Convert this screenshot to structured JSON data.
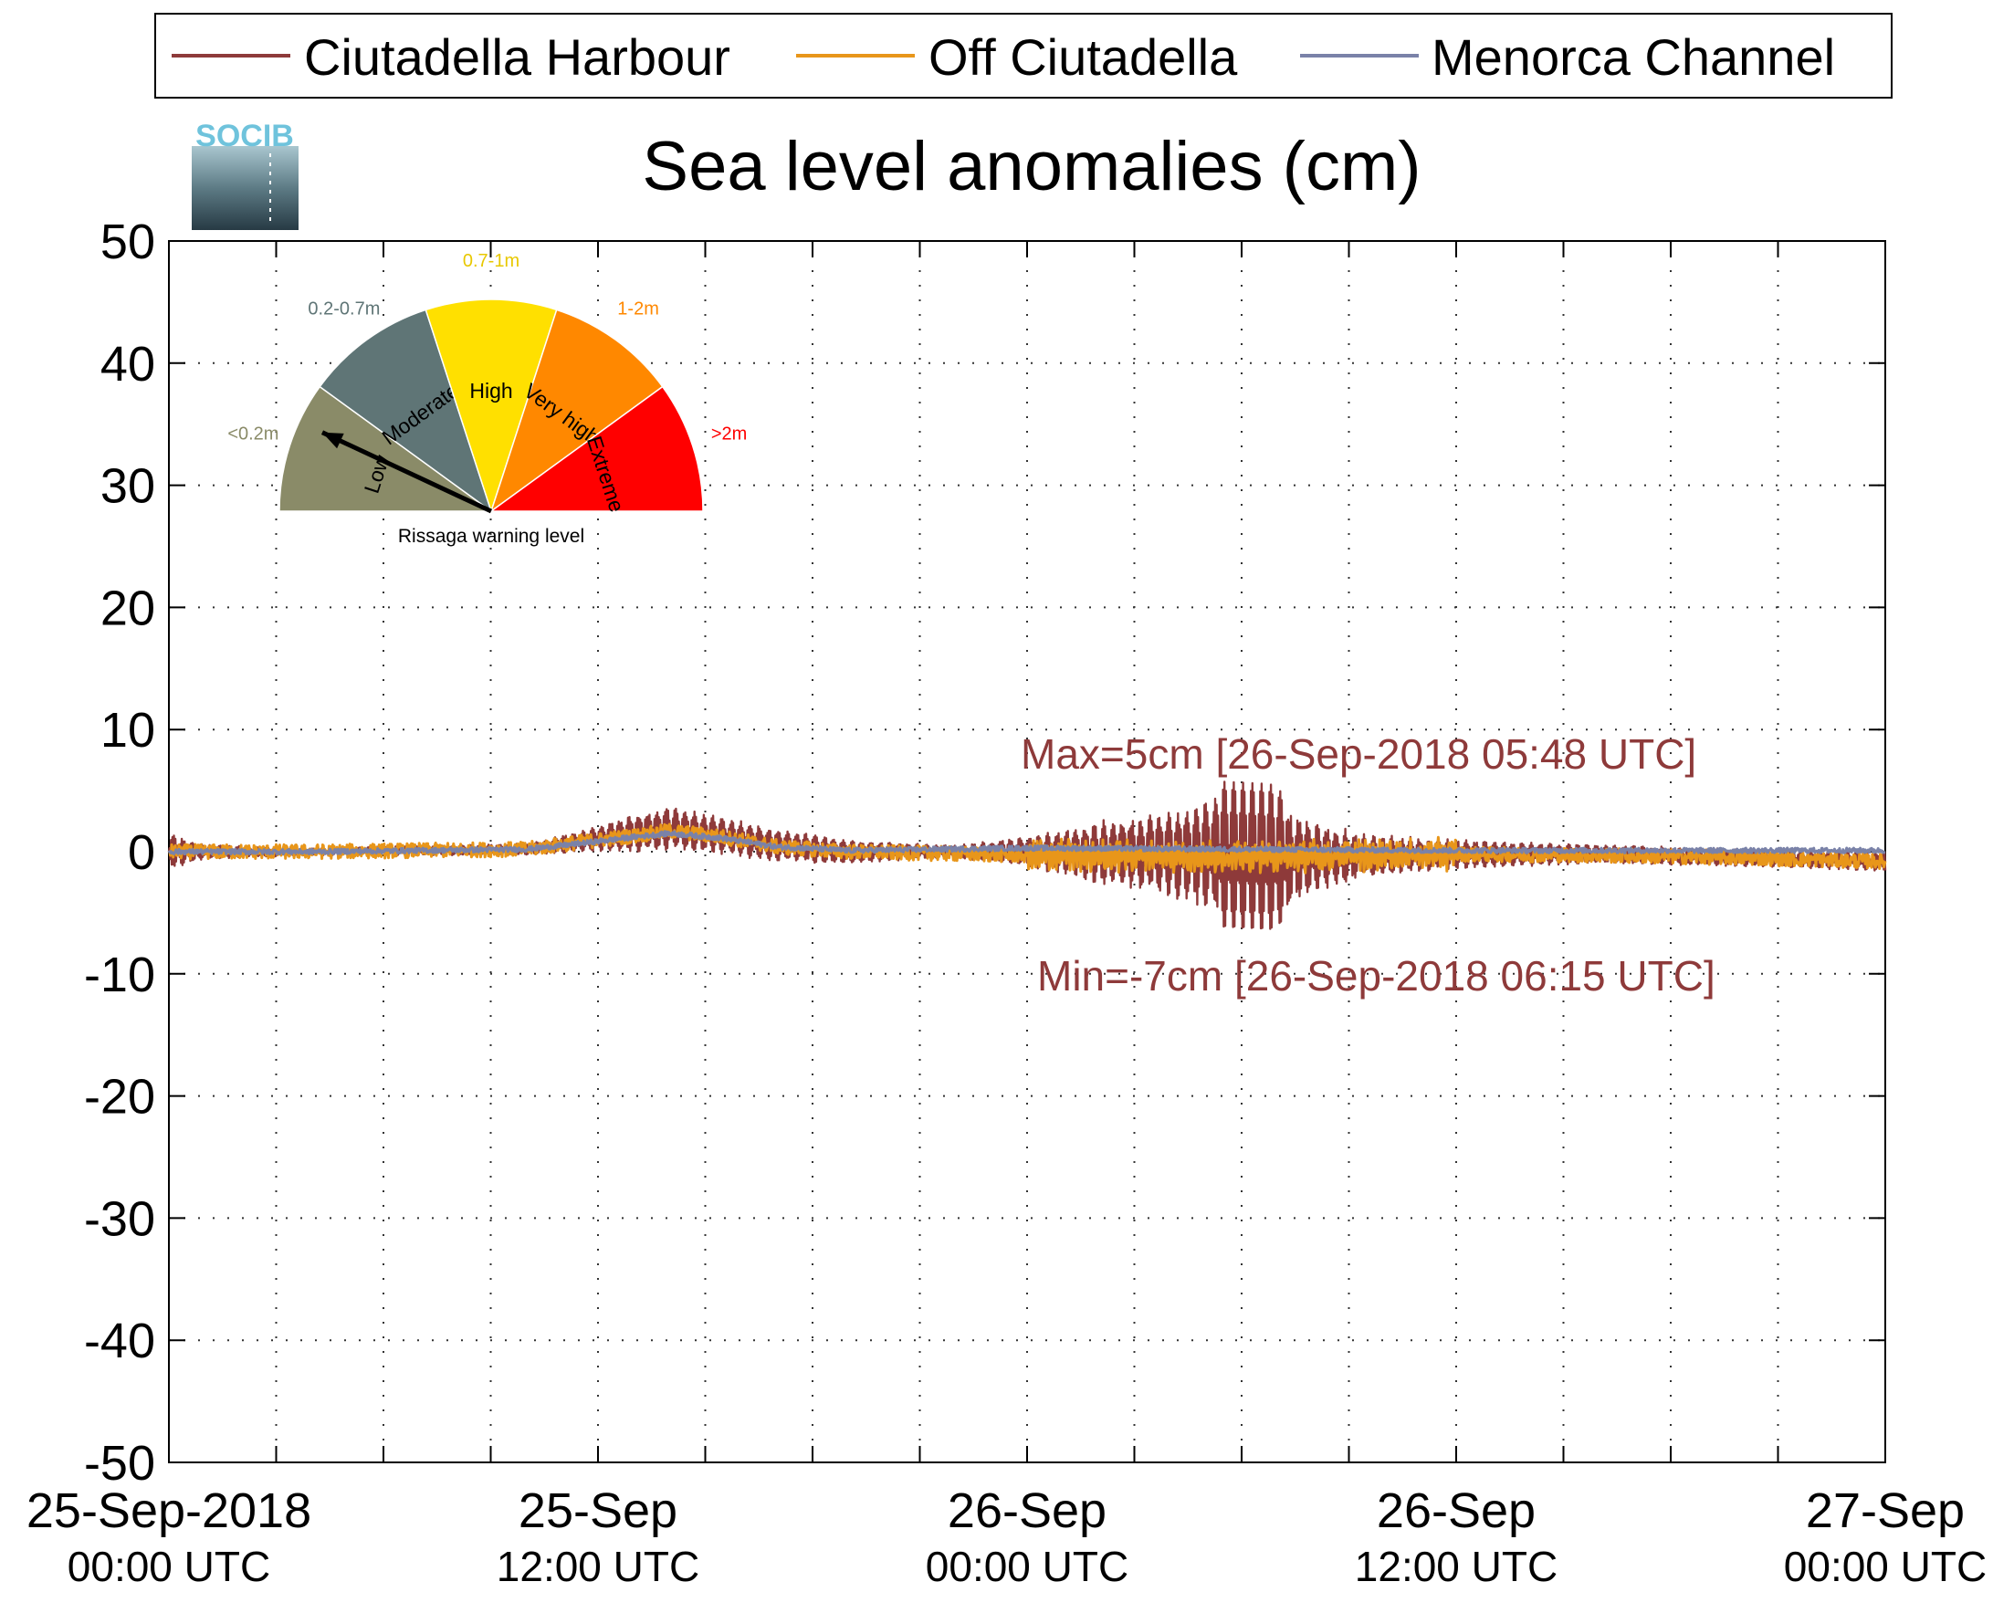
{
  "chart_data": {
    "type": "line",
    "title": "Sea level anomalies (cm)",
    "ylim": [
      -50,
      50
    ],
    "yticks": [
      50,
      40,
      30,
      20,
      10,
      0,
      -10,
      -20,
      -30,
      -40,
      -50
    ],
    "xlim_hours": [
      0,
      48
    ],
    "xticks": [
      {
        "hours": 0,
        "line1": "25-Sep-2018",
        "line2": "00:00 UTC"
      },
      {
        "hours": 12,
        "line1": "25-Sep",
        "line2": "12:00 UTC"
      },
      {
        "hours": 24,
        "line1": "26-Sep",
        "line2": "00:00 UTC"
      },
      {
        "hours": 36,
        "line1": "26-Sep",
        "line2": "12:00 UTC"
      },
      {
        "hours": 48,
        "line1": "27-Sep",
        "line2": "00:00 UTC"
      }
    ],
    "grid": true,
    "legend_position": "top",
    "series": [
      {
        "name": "Ciutadella Harbour",
        "color": "#8e3a3a",
        "envelope": [
          [
            0,
            1.5
          ],
          [
            1,
            0.6
          ],
          [
            4,
            0.3
          ],
          [
            10,
            0.5
          ],
          [
            12,
            1.0
          ],
          [
            13,
            1.6
          ],
          [
            14,
            1.8
          ],
          [
            16,
            1.5
          ],
          [
            18,
            1.2
          ],
          [
            20,
            0.8
          ],
          [
            22,
            0.5
          ],
          [
            24,
            1.3
          ],
          [
            26,
            2.6
          ],
          [
            28,
            3.6
          ],
          [
            29.5,
            5
          ],
          [
            30.8,
            5
          ],
          [
            32,
            3
          ],
          [
            33.5,
            1.8
          ],
          [
            36,
            1.2
          ],
          [
            40,
            0.8
          ],
          [
            44,
            0.7
          ],
          [
            48,
            0.8
          ]
        ],
        "baseline": [
          [
            0,
            0
          ],
          [
            4,
            0
          ],
          [
            10,
            0.2
          ],
          [
            11,
            0.6
          ],
          [
            13,
            1.5
          ],
          [
            14,
            1.9
          ],
          [
            15.5,
            1.3
          ],
          [
            17,
            0.5
          ],
          [
            19,
            0
          ],
          [
            24,
            0
          ],
          [
            29,
            -0.2
          ],
          [
            31,
            -0.5
          ],
          [
            36,
            -0.2
          ],
          [
            40,
            -0.2
          ],
          [
            44,
            -0.5
          ],
          [
            48,
            -0.8
          ]
        ]
      },
      {
        "name": "Off Ciutadella",
        "color": "#e8961a",
        "baseline": [
          [
            0,
            0
          ],
          [
            4,
            0
          ],
          [
            10,
            0.2
          ],
          [
            11,
            0.6
          ],
          [
            13,
            1.3
          ],
          [
            14,
            1.7
          ],
          [
            15.5,
            1.2
          ],
          [
            17,
            0.4
          ],
          [
            19,
            0
          ],
          [
            24,
            -0.3
          ],
          [
            30,
            -0.4
          ],
          [
            36,
            -0.2
          ],
          [
            40,
            -0.3
          ],
          [
            44,
            -0.5
          ],
          [
            48,
            -0.8
          ]
        ],
        "noise": 0.6
      },
      {
        "name": "Menorca Channel",
        "color": "#7a82a8",
        "baseline": [
          [
            0,
            0
          ],
          [
            4,
            0
          ],
          [
            10,
            0.2
          ],
          [
            11,
            0.5
          ],
          [
            13,
            1.2
          ],
          [
            14,
            1.5
          ],
          [
            15.5,
            1.1
          ],
          [
            17,
            0.4
          ],
          [
            19,
            0.1
          ],
          [
            24,
            0.3
          ],
          [
            30,
            0.2
          ],
          [
            36,
            0.1
          ],
          [
            40,
            0.1
          ],
          [
            48,
            0.1
          ]
        ],
        "noise": 0.2
      }
    ],
    "annotations": {
      "max": {
        "text": "Max=5cm [26-Sep-2018 05:48 UTC]",
        "hours": 29.8,
        "value": 5
      },
      "min": {
        "text": "Min=-7cm [26-Sep-2018 06:15 UTC]",
        "hours": 30.25,
        "value": -7
      }
    }
  },
  "logo": {
    "text": "SOCIB"
  },
  "gauge": {
    "caption": "Rissaga warning level",
    "needle_angle_deg": 155,
    "sectors": [
      {
        "name": "Low",
        "range": "<0.2m",
        "color": "#8a8b68",
        "range_color": "#8a8b68"
      },
      {
        "name": "Moderate",
        "range": "0.2-0.7m",
        "color": "#5f7576",
        "range_color": "#5f7576"
      },
      {
        "name": "High",
        "range": "0.7-1m",
        "color": "#ffe000",
        "range_color": "#e8c800"
      },
      {
        "name": "Very high",
        "range": "1-2m",
        "color": "#ff8800",
        "range_color": "#ff8800"
      },
      {
        "name": "Extreme",
        "range": ">2m",
        "color": "#ff0000",
        "range_color": "#ff0000"
      }
    ]
  }
}
